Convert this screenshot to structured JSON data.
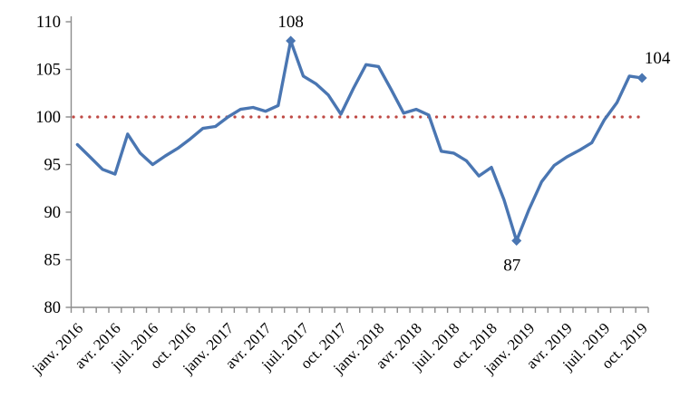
{
  "chart_data": {
    "type": "line",
    "title": "",
    "xlabel": "",
    "ylabel": "",
    "ylim": [
      80,
      110
    ],
    "yticks": [
      80,
      85,
      90,
      95,
      100,
      105,
      110
    ],
    "grid": false,
    "legend": "none",
    "x": [
      "janv. 2016",
      "févr. 2016",
      "mars 2016",
      "avr. 2016",
      "mai 2016",
      "juin 2016",
      "juil. 2016",
      "août 2016",
      "sept. 2016",
      "oct. 2016",
      "nov. 2016",
      "déc. 2016",
      "janv. 2017",
      "févr. 2017",
      "mars 2017",
      "avr. 2017",
      "mai 2017",
      "juin 2017",
      "juil. 2017",
      "août 2017",
      "sept. 2017",
      "oct. 2017",
      "nov. 2017",
      "déc. 2017",
      "janv. 2018",
      "févr. 2018",
      "mars 2018",
      "avr. 2018",
      "mai 2018",
      "juin 2018",
      "juil. 2018",
      "août 2018",
      "sept. 2018",
      "oct. 2018",
      "nov. 2018",
      "déc. 2018",
      "janv. 2019",
      "févr. 2019",
      "mars 2019",
      "avr. 2019",
      "mai 2019",
      "juin 2019",
      "juil. 2019",
      "août 2019",
      "sept. 2019",
      "oct. 2019"
    ],
    "values": [
      97.1,
      95.8,
      94.5,
      94.0,
      98.2,
      96.2,
      95.0,
      95.9,
      96.7,
      97.7,
      98.8,
      99.0,
      100.0,
      100.8,
      101.0,
      100.6,
      101.2,
      108.0,
      104.3,
      103.5,
      102.3,
      100.3,
      103.0,
      105.5,
      105.3,
      102.9,
      100.4,
      100.8,
      100.2,
      96.4,
      96.2,
      95.4,
      93.8,
      94.7,
      91.3,
      87.0,
      90.3,
      93.2,
      94.9,
      95.8,
      96.5,
      97.3,
      99.7,
      101.5,
      104.3,
      104.1
    ],
    "x_tick_labels": [
      "janv. 2016",
      "avr. 2016",
      "juil. 2016",
      "oct. 2016",
      "janv. 2017",
      "avr. 2017",
      "juil. 2017",
      "oct. 2017",
      "janv. 2018",
      "avr. 2018",
      "juil. 2018",
      "oct. 2018",
      "janv. 2019",
      "avr. 2019",
      "juil. 2019",
      "oct. 2019"
    ],
    "x_tick_every_n_months": 3,
    "reference_line": {
      "value": 100,
      "color": "#BF4A45",
      "style": "dotted"
    },
    "series_color": "#4A76B2",
    "axis_color": "#8C8C8C",
    "text_color": "#000000",
    "marker_shape": "diamond",
    "marker_indices": [
      17,
      35,
      45
    ],
    "annotations": [
      {
        "index": 17,
        "month": "juin 2017",
        "text": "108",
        "position": "above"
      },
      {
        "index": 35,
        "month": "déc. 2018",
        "text": "87",
        "position": "below"
      },
      {
        "index": 45,
        "month": "oct. 2019",
        "text": "104",
        "position": "above-right"
      }
    ]
  }
}
